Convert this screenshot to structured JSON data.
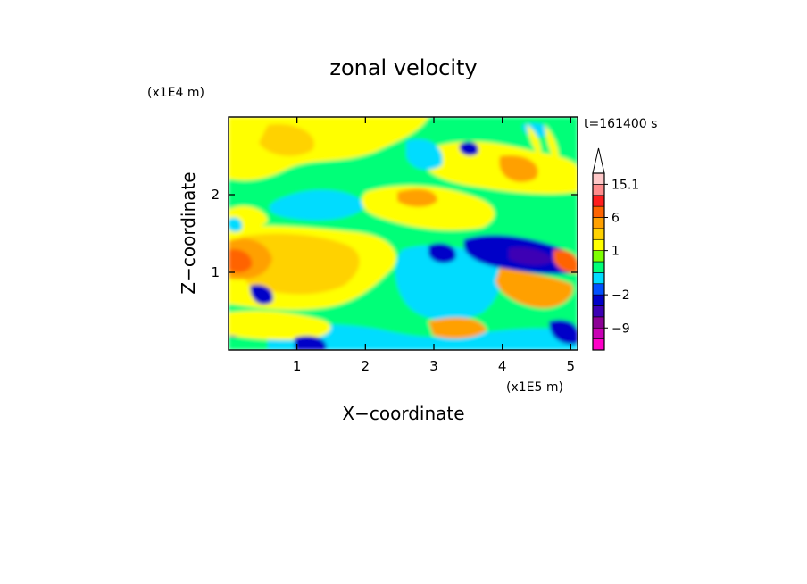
{
  "chart_data": {
    "type": "heatmap",
    "title": "zonal velocity",
    "xlabel": "X−coordinate",
    "ylabel": "Z−coordinate",
    "x_unit": "(x1E5 m)",
    "y_unit": "(x1E4 m)",
    "time_label": "t=161400 s",
    "xlim": [
      0,
      5.1
    ],
    "ylim": [
      0,
      3.0
    ],
    "xticks": [
      1,
      2,
      3,
      4,
      5
    ],
    "yticks": [
      1,
      2
    ],
    "xtick_labels": [
      "1",
      "2",
      "3",
      "4",
      "5"
    ],
    "ytick_labels": [
      "1",
      "2"
    ],
    "colorbar": {
      "labels": [
        {
          "text": "15.1",
          "value": 15.1
        },
        {
          "text": "6",
          "value": 6
        },
        {
          "text": "1",
          "value": 1
        },
        {
          "text": "−2",
          "value": -2
        },
        {
          "text": "−9",
          "value": -9
        }
      ],
      "levels": [
        -15,
        -12,
        -9,
        -6,
        -4,
        -2,
        -1,
        0,
        0.5,
        1,
        2,
        3,
        6,
        9,
        12,
        15.1
      ],
      "colors": [
        "#ff00c8",
        "#c800b4",
        "#8c0096",
        "#3c00b4",
        "#0000c8",
        "#0050ff",
        "#00dcff",
        "#00ff78",
        "#7dff00",
        "#ffff00",
        "#ffd200",
        "#ffa000",
        "#ff6400",
        "#ff1e1e",
        "#ff8c8c",
        "#ffc8c8"
      ]
    },
    "features": [
      {
        "kind": "jet",
        "value": 8,
        "x": 0.15,
        "z": 1.15,
        "note": "strong positive core near left boundary"
      },
      {
        "kind": "jet",
        "value": -9,
        "x": 4.5,
        "z": 1.2,
        "note": "strong negative band"
      },
      {
        "kind": "jet",
        "value": 8,
        "x": 4.95,
        "z": 1.15,
        "note": "positive core near right boundary"
      }
    ]
  }
}
